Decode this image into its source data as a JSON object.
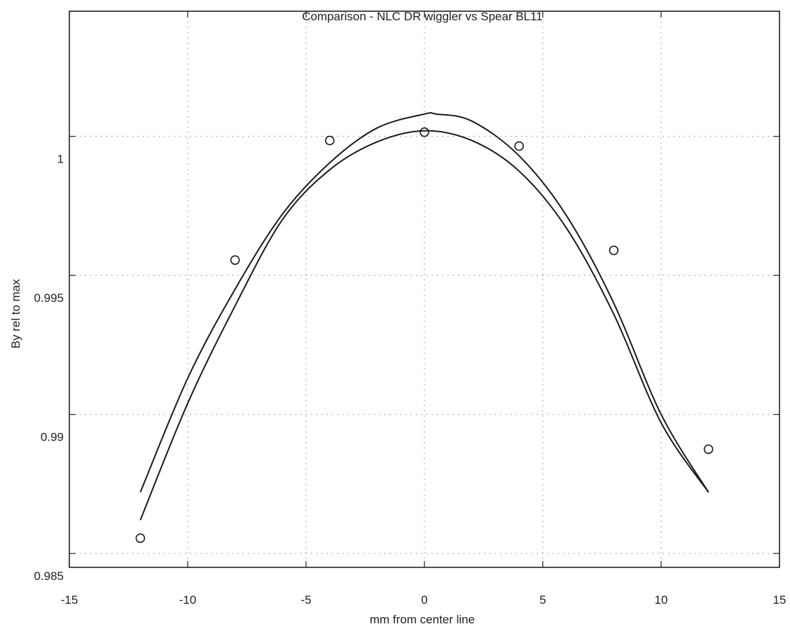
{
  "chart_data": {
    "type": "line",
    "title": "Comparison - NLC DR wiggler vs Spear BL11",
    "xlabel": "mm from center line",
    "ylabel": "By rel to max",
    "xlim": [
      -15,
      15
    ],
    "ylim": [
      0.9845,
      1.0045
    ],
    "xticks": [
      -15,
      -10,
      -5,
      0,
      5,
      10,
      15
    ],
    "xtick_labels": [
      "-15",
      "-10",
      "-5",
      "0",
      "5",
      "10",
      "15"
    ],
    "yticks": [
      0.985,
      0.99,
      0.995,
      1.0
    ],
    "ytick_labels": [
      "0.985",
      "0.99",
      "0.995",
      "1"
    ],
    "grid": true,
    "series": [
      {
        "type": "line",
        "x": [
          -12,
          -10,
          -8,
          -6,
          -4,
          -2,
          0,
          0.5,
          2,
          4,
          6,
          8,
          10,
          12
        ],
        "y": [
          0.9872,
          0.9913,
          0.9945,
          0.9972,
          0.99905,
          1.0003,
          1.0008,
          1.0008,
          1.00055,
          0.9993,
          0.99715,
          0.994,
          0.99,
          0.9872
        ]
      },
      {
        "type": "line",
        "x": [
          -12,
          -10,
          -8,
          -6,
          -4,
          -2,
          0,
          2,
          4,
          6,
          8,
          10,
          12
        ],
        "y": [
          0.9862,
          0.9904,
          0.9939,
          0.997,
          0.9988,
          0.9998,
          1.0002,
          0.99985,
          0.99875,
          0.9967,
          0.9936,
          0.9897,
          0.9872
        ]
      },
      {
        "type": "scatter",
        "marker": "circle",
        "x": [
          -12,
          -8,
          -4,
          0,
          4,
          8,
          12
        ],
        "y": [
          0.98555,
          0.99555,
          0.99985,
          1.00015,
          0.99965,
          0.9959,
          0.98875
        ]
      }
    ]
  }
}
